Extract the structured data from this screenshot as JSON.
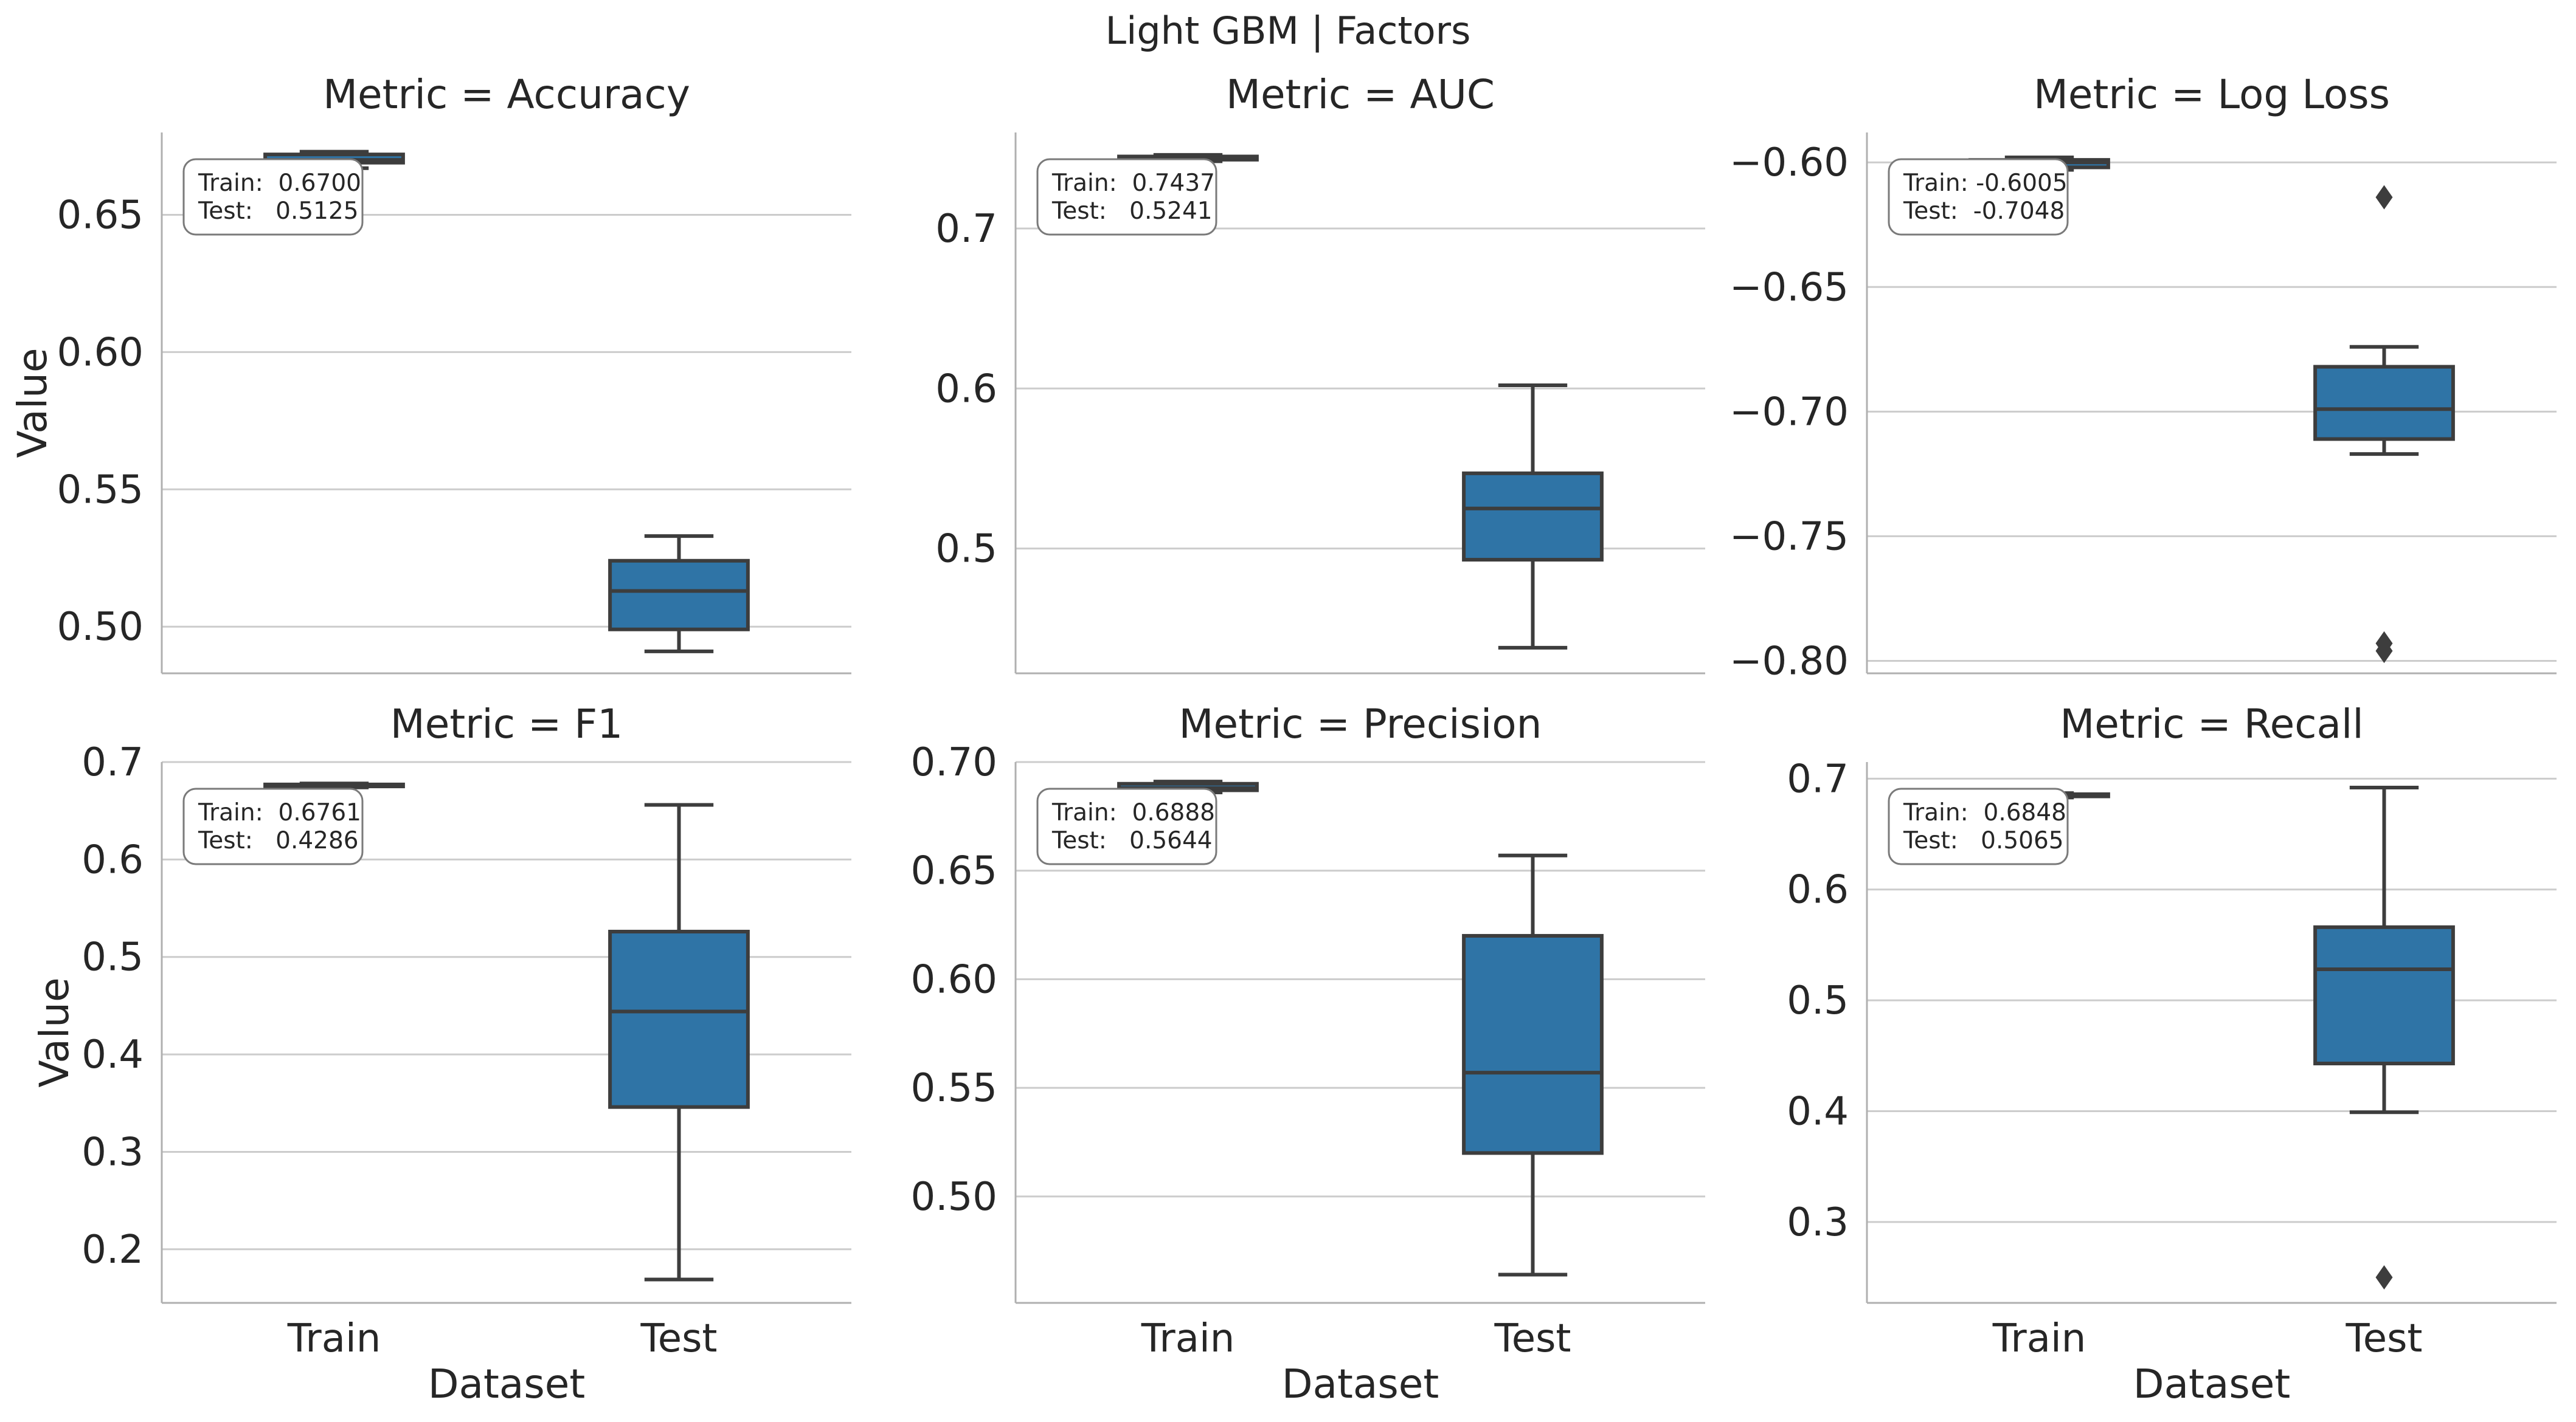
{
  "suptitle": "Light GBM | Factors",
  "ylabel": "Value",
  "xlabel": "Dataset",
  "colors": {
    "box": "#2f74a6",
    "line": "#3d3d3d",
    "grid": "#cccccc",
    "axis": "#b0b0b0"
  },
  "chart_data": [
    {
      "type": "box",
      "title": "Metric = Accuracy",
      "categories": [
        "Train",
        "Test"
      ],
      "ylim": [
        0.483,
        0.68
      ],
      "yticks": [
        0.5,
        0.55,
        0.6,
        0.65
      ],
      "yticklabels": [
        "0.50",
        "0.55",
        "0.60",
        "0.65"
      ],
      "boxes": [
        {
          "name": "Train",
          "whislo": 0.667,
          "q1": 0.669,
          "med": 0.67,
          "q3": 0.672,
          "whishi": 0.673,
          "fliers": []
        },
        {
          "name": "Test",
          "whislo": 0.491,
          "q1": 0.499,
          "med": 0.513,
          "q3": 0.524,
          "whishi": 0.533,
          "fliers": []
        }
      ],
      "annotation": [
        "Train:  0.6700",
        "Test:   0.5125"
      ]
    },
    {
      "type": "box",
      "title": "Metric = AUC",
      "categories": [
        "Train",
        "Test"
      ],
      "ylim": [
        0.422,
        0.76
      ],
      "yticks": [
        0.5,
        0.6,
        0.7
      ],
      "yticklabels": [
        "0.5",
        "0.6",
        "0.7"
      ],
      "boxes": [
        {
          "name": "Train",
          "whislo": 0.742,
          "q1": 0.743,
          "med": 0.744,
          "q3": 0.745,
          "whishi": 0.746,
          "fliers": []
        },
        {
          "name": "Test",
          "whislo": 0.438,
          "q1": 0.493,
          "med": 0.525,
          "q3": 0.547,
          "whishi": 0.602,
          "fliers": []
        }
      ],
      "annotation": [
        "Train:  0.7437",
        "Test:   0.5241"
      ]
    },
    {
      "type": "box",
      "title": "Metric = Log Loss",
      "categories": [
        "Train",
        "Test"
      ],
      "ylim": [
        -0.805,
        -0.588
      ],
      "yticks": [
        -0.8,
        -0.75,
        -0.7,
        -0.65,
        -0.6
      ],
      "yticklabels": [
        "−0.80",
        "−0.75",
        "−0.70",
        "−0.65",
        "−0.60"
      ],
      "boxes": [
        {
          "name": "Train",
          "whislo": -0.603,
          "q1": -0.602,
          "med": -0.6,
          "q3": -0.599,
          "whishi": -0.598,
          "fliers": []
        },
        {
          "name": "Test",
          "whislo": -0.717,
          "q1": -0.711,
          "med": -0.699,
          "q3": -0.682,
          "whishi": -0.674,
          "fliers": [
            -0.614,
            -0.793,
            -0.796
          ]
        }
      ],
      "annotation": [
        "Train: -0.6005",
        "Test:  -0.7048"
      ]
    },
    {
      "type": "box",
      "title": "Metric = F1",
      "categories": [
        "Train",
        "Test"
      ],
      "ylim": [
        0.145,
        0.7
      ],
      "yticks": [
        0.2,
        0.3,
        0.4,
        0.5,
        0.6,
        0.7
      ],
      "yticklabels": [
        "0.2",
        "0.3",
        "0.4",
        "0.5",
        "0.6",
        "0.7"
      ],
      "boxes": [
        {
          "name": "Train",
          "whislo": 0.674,
          "q1": 0.675,
          "med": 0.676,
          "q3": 0.677,
          "whishi": 0.678,
          "fliers": []
        },
        {
          "name": "Test",
          "whislo": 0.169,
          "q1": 0.346,
          "med": 0.444,
          "q3": 0.526,
          "whishi": 0.656,
          "fliers": []
        }
      ],
      "annotation": [
        "Train:  0.6761",
        "Test:   0.4286"
      ]
    },
    {
      "type": "box",
      "title": "Metric = Precision",
      "categories": [
        "Train",
        "Test"
      ],
      "ylim": [
        0.451,
        0.7
      ],
      "yticks": [
        0.5,
        0.55,
        0.6,
        0.65,
        0.7
      ],
      "yticklabels": [
        "0.50",
        "0.55",
        "0.60",
        "0.65",
        "0.70"
      ],
      "boxes": [
        {
          "name": "Train",
          "whislo": 0.686,
          "q1": 0.687,
          "med": 0.688,
          "q3": 0.69,
          "whishi": 0.691,
          "fliers": []
        },
        {
          "name": "Test",
          "whislo": 0.464,
          "q1": 0.52,
          "med": 0.557,
          "q3": 0.62,
          "whishi": 0.657,
          "fliers": []
        }
      ],
      "annotation": [
        "Train:  0.6888",
        "Test:   0.5644"
      ]
    },
    {
      "type": "box",
      "title": "Metric = Recall",
      "categories": [
        "Train",
        "Test"
      ],
      "ylim": [
        0.227,
        0.715
      ],
      "yticks": [
        0.3,
        0.4,
        0.5,
        0.6,
        0.7
      ],
      "yticklabels": [
        "0.3",
        "0.4",
        "0.5",
        "0.6",
        "0.7"
      ],
      "boxes": [
        {
          "name": "Train",
          "whislo": 0.683,
          "q1": 0.684,
          "med": 0.685,
          "q3": 0.686,
          "whishi": 0.687,
          "fliers": []
        },
        {
          "name": "Test",
          "whislo": 0.399,
          "q1": 0.443,
          "med": 0.528,
          "q3": 0.566,
          "whishi": 0.692,
          "fliers": [
            0.25
          ]
        }
      ],
      "annotation": [
        "Train:  0.6848",
        "Test:   0.5065"
      ]
    }
  ]
}
